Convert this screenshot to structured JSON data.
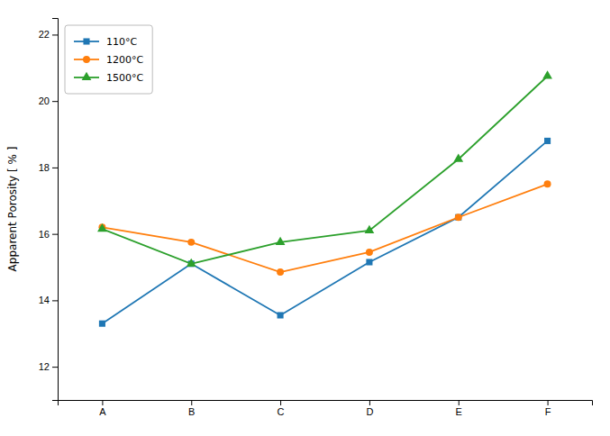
{
  "chart_data": {
    "type": "line",
    "categories": [
      "A",
      "B",
      "C",
      "D",
      "E",
      "F"
    ],
    "series": [
      {
        "name": "110°C",
        "marker": "square",
        "values": [
          13.3,
          15.1,
          13.55,
          15.15,
          16.5,
          18.8
        ]
      },
      {
        "name": "1200°C",
        "marker": "circle",
        "values": [
          16.2,
          15.75,
          14.85,
          15.45,
          16.5,
          17.5
        ]
      },
      {
        "name": "1500°C",
        "marker": "triangle",
        "values": [
          16.15,
          15.1,
          15.75,
          16.1,
          18.25,
          20.75
        ]
      }
    ],
    "ylabel": "Apparent Porosity [ % ]",
    "ylim": [
      11,
      22.5
    ],
    "yticks": [
      12,
      14,
      16,
      18,
      20,
      22
    ],
    "legend": "upper left",
    "grid": false
  }
}
